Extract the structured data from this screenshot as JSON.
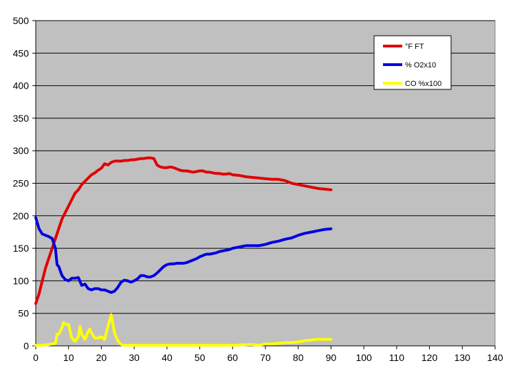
{
  "chart_data": {
    "type": "line",
    "title": "",
    "xlabel": "",
    "ylabel": "",
    "xlim": [
      0,
      140
    ],
    "ylim": [
      0,
      500
    ],
    "x_ticks": [
      0,
      10,
      20,
      30,
      40,
      50,
      60,
      70,
      80,
      90,
      100,
      110,
      120,
      130,
      140
    ],
    "y_ticks": [
      0,
      50,
      100,
      150,
      200,
      250,
      300,
      350,
      400,
      450,
      500
    ],
    "grid": "horizontal",
    "legend_position": "top-right",
    "plot_background": "#c0c0c0",
    "series": [
      {
        "name": "°F FT",
        "color": "#e00000",
        "points": [
          [
            0,
            65
          ],
          [
            1,
            80
          ],
          [
            2,
            100
          ],
          [
            3,
            120
          ],
          [
            4,
            135
          ],
          [
            5,
            150
          ],
          [
            6,
            165
          ],
          [
            7,
            180
          ],
          [
            8,
            195
          ],
          [
            9,
            205
          ],
          [
            10,
            215
          ],
          [
            11,
            225
          ],
          [
            12,
            235
          ],
          [
            13,
            240
          ],
          [
            14,
            248
          ],
          [
            15,
            253
          ],
          [
            16,
            258
          ],
          [
            17,
            263
          ],
          [
            18,
            266
          ],
          [
            19,
            270
          ],
          [
            20,
            273
          ],
          [
            21,
            280
          ],
          [
            22,
            278
          ],
          [
            23,
            282
          ],
          [
            24,
            284
          ],
          [
            25,
            284
          ],
          [
            26,
            284
          ],
          [
            27,
            285
          ],
          [
            28,
            285
          ],
          [
            29,
            286
          ],
          [
            30,
            286
          ],
          [
            31,
            287
          ],
          [
            32,
            288
          ],
          [
            33,
            288
          ],
          [
            34,
            289
          ],
          [
            35,
            289
          ],
          [
            36,
            288
          ],
          [
            37,
            278
          ],
          [
            38,
            275
          ],
          [
            39,
            274
          ],
          [
            40,
            274
          ],
          [
            41,
            275
          ],
          [
            42,
            274
          ],
          [
            43,
            272
          ],
          [
            44,
            270
          ],
          [
            45,
            269
          ],
          [
            46,
            269
          ],
          [
            47,
            268
          ],
          [
            48,
            267
          ],
          [
            49,
            268
          ],
          [
            50,
            269
          ],
          [
            51,
            269
          ],
          [
            52,
            267
          ],
          [
            53,
            267
          ],
          [
            54,
            266
          ],
          [
            55,
            265
          ],
          [
            56,
            265
          ],
          [
            57,
            264
          ],
          [
            58,
            264
          ],
          [
            59,
            265
          ],
          [
            60,
            263
          ],
          [
            62,
            262
          ],
          [
            64,
            260
          ],
          [
            66,
            259
          ],
          [
            68,
            258
          ],
          [
            70,
            257
          ],
          [
            72,
            256
          ],
          [
            74,
            256
          ],
          [
            76,
            254
          ],
          [
            78,
            250
          ],
          [
            80,
            248
          ],
          [
            82,
            246
          ],
          [
            84,
            244
          ],
          [
            86,
            242
          ],
          [
            88,
            241
          ],
          [
            90,
            240
          ]
        ]
      },
      {
        "name": "% O2x10",
        "color": "#0000e0",
        "points": [
          [
            0,
            197
          ],
          [
            1,
            180
          ],
          [
            2,
            172
          ],
          [
            3,
            170
          ],
          [
            4,
            168
          ],
          [
            5,
            165
          ],
          [
            6,
            150
          ],
          [
            6.5,
            125
          ],
          [
            7,
            122
          ],
          [
            8,
            108
          ],
          [
            9,
            102
          ],
          [
            10,
            100
          ],
          [
            11,
            104
          ],
          [
            12,
            104
          ],
          [
            13,
            105
          ],
          [
            14,
            93
          ],
          [
            15,
            95
          ],
          [
            16,
            88
          ],
          [
            17,
            86
          ],
          [
            18,
            88
          ],
          [
            19,
            88
          ],
          [
            20,
            86
          ],
          [
            21,
            86
          ],
          [
            22,
            84
          ],
          [
            23,
            82
          ],
          [
            24,
            84
          ],
          [
            25,
            90
          ],
          [
            26,
            98
          ],
          [
            27,
            101
          ],
          [
            28,
            100
          ],
          [
            29,
            98
          ],
          [
            30,
            100
          ],
          [
            31,
            103
          ],
          [
            32,
            108
          ],
          [
            33,
            108
          ],
          [
            34,
            106
          ],
          [
            35,
            106
          ],
          [
            36,
            108
          ],
          [
            37,
            112
          ],
          [
            38,
            117
          ],
          [
            39,
            122
          ],
          [
            40,
            125
          ],
          [
            41,
            126
          ],
          [
            42,
            126
          ],
          [
            43,
            127
          ],
          [
            44,
            127
          ],
          [
            45,
            127
          ],
          [
            46,
            128
          ],
          [
            47,
            130
          ],
          [
            48,
            132
          ],
          [
            49,
            134
          ],
          [
            50,
            137
          ],
          [
            51,
            139
          ],
          [
            52,
            141
          ],
          [
            53,
            141
          ],
          [
            54,
            142
          ],
          [
            55,
            143
          ],
          [
            56,
            145
          ],
          [
            57,
            146
          ],
          [
            58,
            147
          ],
          [
            59,
            148
          ],
          [
            60,
            150
          ],
          [
            62,
            152
          ],
          [
            64,
            154
          ],
          [
            66,
            154
          ],
          [
            68,
            154
          ],
          [
            70,
            156
          ],
          [
            72,
            159
          ],
          [
            74,
            161
          ],
          [
            76,
            164
          ],
          [
            78,
            166
          ],
          [
            80,
            170
          ],
          [
            82,
            173
          ],
          [
            84,
            175
          ],
          [
            86,
            177
          ],
          [
            88,
            179
          ],
          [
            90,
            180
          ]
        ]
      },
      {
        "name": "CO %x100",
        "color": "#ffff00",
        "points": [
          [
            0,
            1
          ],
          [
            2,
            1
          ],
          [
            4,
            2
          ],
          [
            5,
            3
          ],
          [
            6,
            4
          ],
          [
            6.5,
            18
          ],
          [
            7,
            18
          ],
          [
            8,
            28
          ],
          [
            8.5,
            36
          ],
          [
            9,
            33
          ],
          [
            10,
            33
          ],
          [
            10.5,
            22
          ],
          [
            11,
            12
          ],
          [
            12,
            7
          ],
          [
            13,
            14
          ],
          [
            13.5,
            30
          ],
          [
            14,
            18
          ],
          [
            15,
            10
          ],
          [
            16,
            22
          ],
          [
            16.5,
            26
          ],
          [
            17,
            20
          ],
          [
            18,
            12
          ],
          [
            19,
            12
          ],
          [
            20,
            14
          ],
          [
            21,
            10
          ],
          [
            22,
            30
          ],
          [
            23,
            48
          ],
          [
            24,
            20
          ],
          [
            25,
            8
          ],
          [
            26,
            2
          ],
          [
            27,
            1
          ],
          [
            30,
            1
          ],
          [
            35,
            1
          ],
          [
            40,
            1
          ],
          [
            45,
            1
          ],
          [
            50,
            1
          ],
          [
            55,
            1
          ],
          [
            60,
            1
          ],
          [
            65,
            2
          ],
          [
            66,
            2
          ],
          [
            68,
            1
          ],
          [
            70,
            3
          ],
          [
            72,
            3
          ],
          [
            74,
            4
          ],
          [
            76,
            5
          ],
          [
            78,
            5
          ],
          [
            80,
            6
          ],
          [
            82,
            8
          ],
          [
            84,
            9
          ],
          [
            86,
            10
          ],
          [
            88,
            10
          ],
          [
            90,
            10
          ]
        ]
      }
    ]
  }
}
